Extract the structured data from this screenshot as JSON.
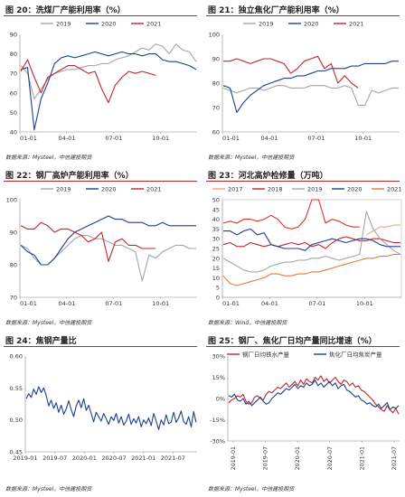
{
  "charts": [
    {
      "title": "图 20：洗煤厂产能利用率（%）",
      "source": "数据来源：Mysteel，中信建投期货",
      "chart_data": {
        "type": "line",
        "x": [
          "01-01",
          "01-15",
          "01-29",
          "02-12",
          "02-26",
          "03-12",
          "03-26",
          "04-09",
          "04-23",
          "05-07",
          "05-21",
          "06-04",
          "06-18",
          "07-02",
          "07-16",
          "07-30",
          "08-13",
          "08-27",
          "09-10",
          "09-24",
          "10-08",
          "10-22",
          "11-05",
          "11-19",
          "12-03",
          "12-17",
          "12-31"
        ],
        "xticks": [
          "01-01",
          "04-01",
          "07-01",
          "10-01"
        ],
        "ylim": [
          40,
          90
        ],
        "yticks": [
          40,
          50,
          60,
          70,
          80,
          90
        ],
        "legend_position": "top",
        "series": [
          {
            "name": "2019",
            "color": "#a6a6a6",
            "values": [
              74,
              70,
              57,
              62,
              67,
              70,
              71,
              72,
              72,
              73,
              74,
              74,
              75,
              75,
              77,
              78,
              79,
              81,
              83,
              82,
              85,
              84,
              80,
              85,
              82,
              81,
              76
            ]
          },
          {
            "name": "2020",
            "color": "#1f3f8f",
            "values": [
              72,
              73,
              41,
              57,
              65,
              75,
              78,
              79,
              78,
              79,
              80,
              81,
              80,
              79,
              80,
              81,
              80,
              80,
              79,
              80,
              80,
              77,
              76,
              76,
              75,
              74,
              72
            ]
          },
          {
            "name": "2021",
            "color": "#c0272d",
            "values": [
              71,
              77,
              68,
              60,
              68,
              70,
              72,
              74,
              74,
              72,
              70,
              71,
              62,
              55,
              64,
              68,
              71,
              70,
              71,
              70,
              69,
              null,
              null,
              null,
              null,
              null,
              null
            ]
          }
        ]
      }
    },
    {
      "title": "图 21：独立焦化厂产能利用率（%）",
      "source": "数据来源：Mysteel，中信建投期货",
      "chart_data": {
        "type": "line",
        "x": [
          "01-01",
          "01-15",
          "01-29",
          "02-12",
          "02-26",
          "03-12",
          "03-26",
          "04-09",
          "04-23",
          "05-07",
          "05-21",
          "06-04",
          "06-18",
          "07-02",
          "07-16",
          "07-30",
          "08-13",
          "08-27",
          "09-10",
          "09-24",
          "10-08",
          "10-22",
          "11-05",
          "11-19",
          "12-03",
          "12-17",
          "12-31"
        ],
        "xticks": [
          "01-01",
          "04-01",
          "07-01",
          "10-01"
        ],
        "ylim": [
          60,
          100
        ],
        "yticks": [
          60,
          70,
          80,
          90,
          100
        ],
        "legend_position": "top",
        "series": [
          {
            "name": "2019",
            "color": "#a6a6a6",
            "values": [
              78,
              77,
              76,
              77,
              78,
              78,
              77,
              78,
              79,
              79,
              78,
              78,
              78,
              79,
              79,
              79,
              78,
              78,
              79,
              78,
              71,
              71,
              77,
              76,
              77,
              78,
              78
            ]
          },
          {
            "name": "2020",
            "color": "#1f3f8f",
            "values": [
              79,
              78,
              68,
              72,
              75,
              77,
              79,
              80,
              81,
              82,
              82,
              83,
              83,
              84,
              85,
              85,
              86,
              86,
              86,
              87,
              87,
              88,
              88,
              88,
              88,
              89,
              89
            ]
          },
          {
            "name": "2021",
            "color": "#c0272d",
            "values": [
              89,
              89,
              90,
              89,
              88,
              89,
              90,
              90,
              89,
              88,
              84,
              86,
              89,
              90,
              91,
              86,
              88,
              80,
              83,
              80,
              78,
              null,
              null,
              null,
              null,
              null,
              null
            ]
          }
        ]
      }
    },
    {
      "title": "图 22：钢厂高炉产能利用率（%）",
      "source": "数据来源：Mysteel，中信建投期货",
      "chart_data": {
        "type": "line",
        "x": [
          "01-01",
          "01-15",
          "01-29",
          "02-12",
          "02-26",
          "03-12",
          "03-26",
          "04-09",
          "04-23",
          "05-07",
          "05-21",
          "06-04",
          "06-18",
          "07-02",
          "07-16",
          "07-30",
          "08-13",
          "08-27",
          "09-10",
          "09-24",
          "10-08",
          "10-22",
          "11-05",
          "11-19",
          "12-03",
          "12-17",
          "12-31"
        ],
        "xticks": [
          "01-01",
          "04-01",
          "07-01",
          "10-01"
        ],
        "ylim": [
          70,
          100
        ],
        "yticks": [
          70,
          80,
          90,
          100
        ],
        "legend_position": "top",
        "series": [
          {
            "name": "2019",
            "color": "#a6a6a6",
            "values": [
              86,
              85,
              82,
              80,
              80,
              82,
              84,
              86,
              88,
              89,
              89,
              88,
              88,
              87,
              86,
              86,
              85,
              84,
              75,
              83,
              82,
              84,
              85,
              86,
              86,
              85,
              85
            ]
          },
          {
            "name": "2020",
            "color": "#1f3f8f",
            "values": [
              86,
              84,
              83,
              80,
              80,
              82,
              85,
              88,
              90,
              91,
              92,
              93,
              94,
              95,
              94,
              94,
              93,
              93,
              93,
              92,
              92,
              93,
              92,
              92,
              92,
              92,
              92
            ]
          },
          {
            "name": "2021",
            "color": "#c0272d",
            "values": [
              92,
              91,
              91,
              93,
              92,
              90,
              91,
              91,
              90,
              89,
              87,
              88,
              90,
              81,
              87,
              88,
              86,
              86,
              85,
              85,
              85,
              null,
              null,
              null,
              null,
              null,
              null
            ]
          }
        ]
      }
    },
    {
      "title": "图 23：河北高炉检修量（万吨）",
      "source": "数据来源：Wind，中信建投期货",
      "chart_data": {
        "type": "line",
        "x": [
          "01-01",
          "01-15",
          "01-29",
          "02-12",
          "02-26",
          "03-12",
          "03-26",
          "04-09",
          "04-23",
          "05-07",
          "05-21",
          "06-04",
          "06-18",
          "07-02",
          "07-16",
          "07-30",
          "08-13",
          "08-27",
          "09-10",
          "09-24",
          "10-08",
          "10-22",
          "11-05",
          "11-19",
          "12-03",
          "12-17",
          "12-31"
        ],
        "xticks": [
          "01-01",
          "04-01",
          "07-01",
          "10-01"
        ],
        "ylim": [
          0,
          50
        ],
        "yticks": [
          0,
          5,
          10,
          15,
          20,
          25,
          30,
          35,
          40,
          45,
          50
        ],
        "legend_position": "top",
        "series": [
          {
            "name": "2017",
            "color": "#f4a582",
            "values": [
              null,
              null,
              null,
              null,
              null,
              null,
              null,
              null,
              null,
              null,
              null,
              null,
              null,
              null,
              null,
              null,
              null,
              null,
              null,
              null,
              null,
              32,
              34,
              36,
              36,
              37,
              37
            ]
          },
          {
            "name": "2018",
            "color": "#c0272d",
            "values": [
              27,
              28,
              26,
              26,
              28,
              27,
              26,
              27,
              26,
              27,
              28,
              27,
              28,
              26,
              27,
              25,
              28,
              30,
              31,
              30,
              29,
              29,
              30,
              30,
              29,
              28,
              28
            ]
          },
          {
            "name": "2019",
            "color": "#a6a6a6",
            "values": [
              20,
              18,
              16,
              14,
              13,
              13,
              14,
              16,
              17,
              18,
              18,
              19,
              19,
              20,
              20,
              21,
              20,
              19,
              20,
              21,
              22,
              44,
              35,
              30,
              27,
              24,
              22
            ]
          },
          {
            "name": "2020",
            "color": "#1f3f8f",
            "values": [
              34,
              34,
              32,
              34,
              35,
              32,
              33,
              27,
              26,
              25,
              25,
              25,
              24,
              27,
              28,
              29,
              30,
              29,
              28,
              29,
              30,
              30,
              29,
              27,
              26,
              26,
              26
            ]
          },
          {
            "name": "2021",
            "color": "#e8793a",
            "values": [
              11,
              7,
              6,
              7,
              8,
              9,
              10,
              12,
              12,
              11,
              11,
              12,
              12,
              13,
              13,
              14,
              15,
              16,
              17,
              18,
              19,
              20,
              20,
              21,
              21,
              22,
              22
            ]
          },
          {
            "name": "",
            "color": "#d9342b",
            "values": [
              38,
              39,
              38,
              40,
              40,
              39,
              40,
              42,
              40,
              36,
              35,
              36,
              40,
              50,
              50,
              38,
              40,
              39,
              37,
              36,
              36,
              null,
              null,
              null,
              null,
              null,
              null
            ]
          }
        ]
      }
    },
    {
      "title": "图 24：焦钢产量比",
      "source": "数据来源：Mysteel，中信建投期货",
      "chart_data": {
        "type": "line",
        "xticks": [
          "2019-01",
          "2019-07",
          "2020-01",
          "2020-07",
          "2021-01",
          "2021-07"
        ],
        "ylim": [
          0.45,
          0.6
        ],
        "yticks": [
          0.45,
          0.5,
          0.55,
          0.6
        ],
        "series": [
          {
            "name": "",
            "color": "#1f3f8f",
            "values": [
              0.533,
              0.541,
              0.535,
              0.548,
              0.54,
              0.552,
              0.543,
              0.55,
              0.538,
              0.522,
              0.531,
              0.518,
              0.527,
              0.512,
              0.523,
              0.509,
              0.517,
              0.53,
              0.516,
              0.505,
              0.522,
              0.531,
              0.519,
              0.533,
              0.515,
              0.523,
              0.51,
              0.497,
              0.512,
              0.505,
              0.498,
              0.51,
              0.502,
              0.493,
              0.505,
              0.499,
              0.51,
              0.495,
              0.505,
              0.492,
              0.498,
              0.509,
              0.493,
              0.502,
              0.495,
              0.505,
              0.489,
              0.5,
              0.494,
              0.503,
              0.491,
              0.51,
              0.498,
              0.485,
              0.5,
              0.492,
              0.508,
              0.494,
              0.497,
              0.512,
              0.496,
              0.503,
              0.514,
              0.497,
              0.493,
              0.505,
              0.489,
              0.513,
              0.496
            ]
          }
        ]
      }
    },
    {
      "title": "图 25：钢厂、焦化厂日均产量同比增速（%）",
      "source": "数据来源：Mysteel，中信建投期货",
      "chart_data": {
        "type": "line",
        "xticks": [
          "2019-01",
          "2019-07",
          "2020-01",
          "2020-07",
          "2021-01",
          "2021-07"
        ],
        "ylim": [
          -30,
          30
        ],
        "yticks": [
          -30,
          -15,
          0,
          15,
          30
        ],
        "yformat": "percent",
        "legend_position": "top",
        "series": [
          {
            "name": "钢厂日均铁水产量",
            "color": "#c0272d",
            "values": [
              -3,
              -1,
              0,
              2,
              1,
              3,
              -2,
              -4,
              -3,
              1,
              2,
              0,
              -1,
              3,
              5,
              4,
              6,
              8,
              7,
              9,
              11,
              8,
              10,
              12,
              9,
              13,
              10,
              14,
              12,
              11,
              15,
              13,
              16,
              12,
              14,
              11,
              13,
              15,
              12,
              10,
              13,
              12,
              9,
              11,
              8,
              9,
              6,
              5,
              3,
              1,
              -1,
              -4,
              -6,
              -8,
              -9,
              -5,
              -8,
              -10,
              -7,
              -11
            ]
          },
          {
            "name": "焦化厂日均焦炭产量",
            "color": "#1f3f8f",
            "values": [
              2,
              1,
              3,
              -1,
              -2,
              0,
              -4,
              -2,
              -5,
              -3,
              -1,
              1,
              -2,
              -4,
              -3,
              0,
              2,
              4,
              3,
              5,
              7,
              6,
              8,
              10,
              7,
              9,
              8,
              11,
              9,
              10,
              13,
              9,
              11,
              8,
              10,
              12,
              9,
              11,
              7,
              9,
              10,
              6,
              5,
              3,
              1,
              2,
              -1,
              -2,
              -4,
              -3,
              -5,
              -6,
              -4,
              -7,
              -5,
              -3,
              -8,
              -6,
              -7,
              -5
            ]
          }
        ]
      }
    }
  ]
}
